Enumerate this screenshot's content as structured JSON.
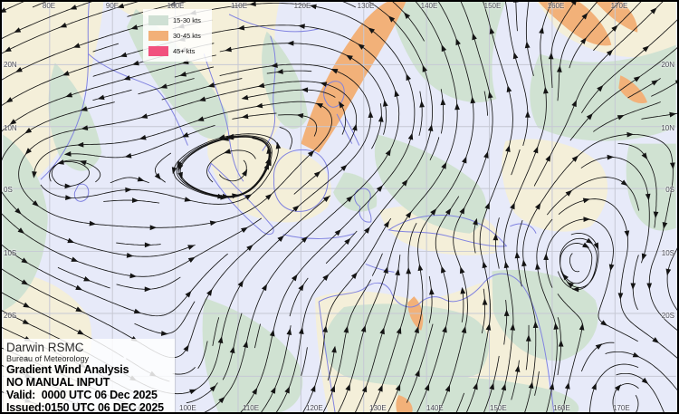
{
  "map": {
    "colors": {
      "sea": "#e7eaf9",
      "calm_land": "#f4efd9",
      "band_15_30": "#d0e2d2",
      "band_30_45": "#f2b179",
      "band_45plus": "#f1517e",
      "coastline": "#8183e0",
      "grid": "#c6c8d4",
      "streamline": "#141414",
      "label": "#4a4a55"
    }
  },
  "legend": {
    "items": [
      {
        "label": "15-30 kts",
        "color": "#cfe0d4"
      },
      {
        "label": "30-45 kts",
        "color": "#f2b078"
      },
      {
        "label": "45+ kts",
        "color": "#f1517e"
      }
    ]
  },
  "info_box": {
    "agency": "Darwin RSMC",
    "org": "Bureau of Meteorology",
    "product": "Gradient Wind Analysis",
    "note": "NO MANUAL INPUT",
    "valid": "Valid:  0000 UTC 06 Dec 2025",
    "issued": "Issued:0150 UTC 06 DEC 2025"
  },
  "grid_labels": {
    "top": [
      "80E",
      "90E",
      "100E",
      "110E",
      "120E",
      "130E",
      "140E",
      "150E",
      "160E",
      "170E"
    ],
    "bottom": [
      "100E",
      "110E",
      "120E",
      "130E",
      "140E",
      "150E",
      "160E",
      "170E"
    ],
    "left": [
      "20N",
      "10N",
      "0S",
      "10S",
      "20S"
    ],
    "right": [
      "20N",
      "10N",
      "0S",
      "10S",
      "20S"
    ]
  }
}
